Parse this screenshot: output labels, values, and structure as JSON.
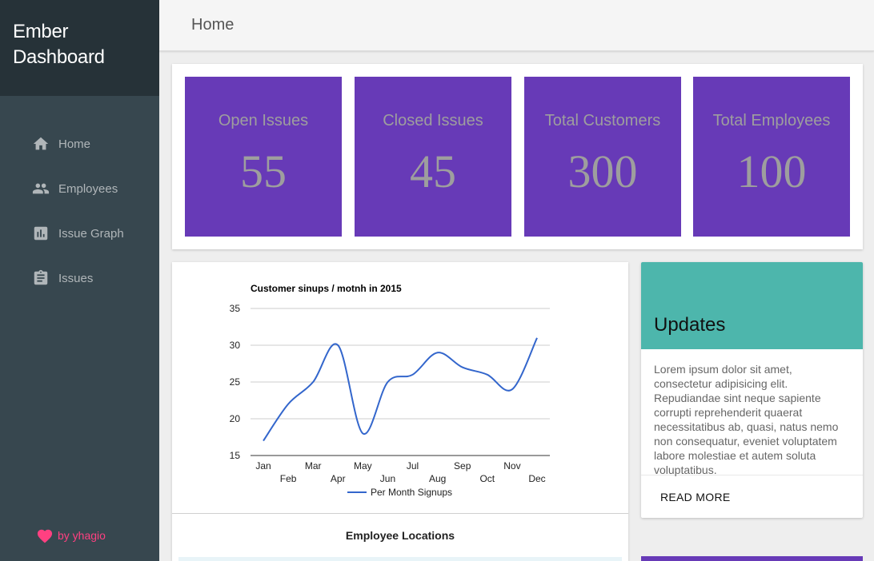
{
  "brand": {
    "line1": "Ember",
    "line2": "Dashboard"
  },
  "nav": [
    {
      "label": "Home",
      "icon": "home-icon"
    },
    {
      "label": "Employees",
      "icon": "people-icon"
    },
    {
      "label": "Issue Graph",
      "icon": "bar-chart-icon"
    },
    {
      "label": "Issues",
      "icon": "clipboard-icon"
    }
  ],
  "credit": {
    "text": "by yhagio",
    "icon": "heart-icon"
  },
  "header": {
    "title": "Home"
  },
  "stats": [
    {
      "label": "Open Issues",
      "value": "55"
    },
    {
      "label": "Closed Issues",
      "value": "45"
    },
    {
      "label": "Total Customers",
      "value": "300"
    },
    {
      "label": "Total Employees",
      "value": "100"
    }
  ],
  "chart_data": {
    "type": "line",
    "title": "Customer sinups / motnh in 2015",
    "categories": [
      "Jan",
      "Feb",
      "Mar",
      "Apr",
      "May",
      "Jun",
      "Jul",
      "Aug",
      "Sep",
      "Oct",
      "Nov",
      "Dec"
    ],
    "series": [
      {
        "name": "Per Month Signups",
        "values": [
          17,
          22,
          25,
          30,
          18,
          25,
          26,
          29,
          27,
          26,
          24,
          31
        ],
        "color": "#3366cc"
      }
    ],
    "yticks": [
      15,
      20,
      25,
      30,
      35
    ],
    "ylim": [
      15,
      35
    ],
    "grid": true,
    "legend": "bottom"
  },
  "locations": {
    "title": "Employee Locations"
  },
  "updates": {
    "title": "Updates",
    "body": "Lorem ipsum dolor sit amet, consectetur adipisicing elit. Repudiandae sint neque sapiente corrupti reprehenderit quaerat necessitatibus ab, quasi, natus nemo non consequatur, eveniet voluptatem labore molestiae et autem soluta voluptatibus.",
    "action": "READ MORE"
  },
  "colors": {
    "sidebar": "#37474f",
    "brand": "#263238",
    "stat": "#673ab7",
    "updates": "#4db6ac",
    "accent": "#ff4081"
  }
}
